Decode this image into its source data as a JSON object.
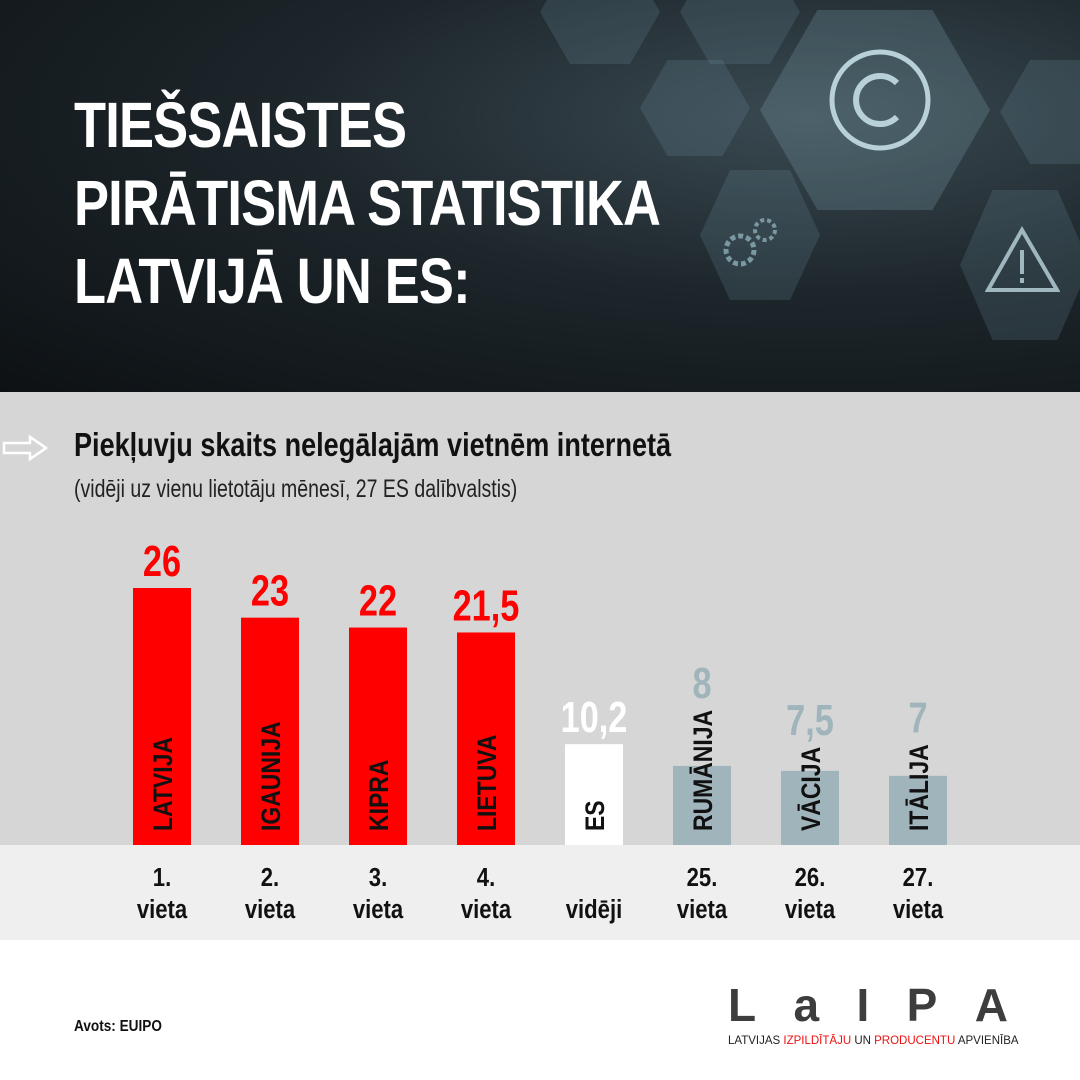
{
  "header": {
    "title_lines": [
      "TIEŠSAISTES",
      "PIRĀTISMA STATISTIKA",
      "LATVIJĀ UN ES:"
    ]
  },
  "subtitle": "Piekļuvju skaits nelegālajām vietnēm internetā",
  "subnote": "(vidēji uz vienu lietotāju mēnesī, 27 ES dalībvalstis)",
  "chart_data": {
    "type": "bar",
    "title": "Piekļuvju skaits nelegālajām vietnēm internetā",
    "categories": [
      "LATVIJA",
      "IGAUNIJA",
      "KIPRA",
      "LIETUVA",
      "ES",
      "RUMĀNIJA",
      "VĀCIJA",
      "ITĀLIJA"
    ],
    "values": [
      26,
      23,
      22,
      21.5,
      10.2,
      8,
      7.5,
      7
    ],
    "value_labels": [
      "26",
      "23",
      "22",
      "21,5",
      "10,2",
      "8",
      "7,5",
      "7"
    ],
    "rank_lines": [
      [
        "1.",
        "vieta"
      ],
      [
        "2.",
        "vieta"
      ],
      [
        "3.",
        "vieta"
      ],
      [
        "4.",
        "vieta"
      ],
      [
        "",
        "vidēji"
      ],
      [
        "25.",
        "vieta"
      ],
      [
        "26.",
        "vieta"
      ],
      [
        "27.",
        "vieta"
      ]
    ],
    "bar_colors": [
      "#ff0000",
      "#ff0000",
      "#ff0000",
      "#ff0000",
      "#ffffff",
      "#9fb5bb",
      "#9fb5bb",
      "#9fb5bb"
    ],
    "label_colors": [
      "#ff0000",
      "#ff0000",
      "#ff0000",
      "#ff0000",
      "#ffffff",
      "#9fb5bb",
      "#9fb5bb",
      "#9fb5bb"
    ],
    "ylim": [
      0,
      26
    ]
  },
  "source": "Avots: EUIPO",
  "logo": {
    "letters": [
      "L",
      "a",
      "I",
      "P",
      "A"
    ],
    "tagline_parts": [
      [
        "LATVIJAS ",
        false
      ],
      [
        "IZPILDĪTĀJU",
        true
      ],
      [
        " UN ",
        false
      ],
      [
        "PRODUCENTU",
        true
      ],
      [
        " APVIENĪBA",
        false
      ]
    ]
  }
}
